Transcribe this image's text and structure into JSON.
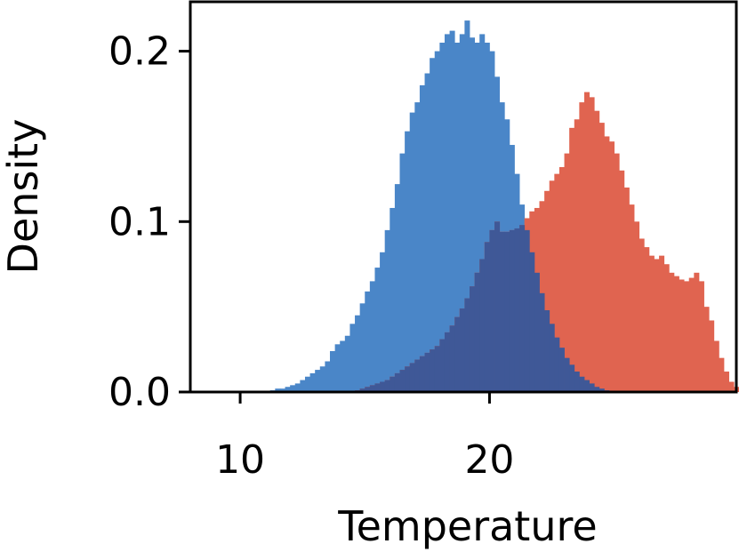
{
  "chart_data": {
    "type": "bar",
    "title": "",
    "xlabel": "Temperature",
    "ylabel": "Density",
    "xlim": [
      8,
      29.9
    ],
    "ylim": [
      0,
      0.229
    ],
    "xticks": [
      10,
      20
    ],
    "xtick_labels": [
      "10",
      "20"
    ],
    "yticks": [
      0.0,
      0.1,
      0.2
    ],
    "ytick_labels": [
      "0.0",
      "0.1",
      "0.2"
    ],
    "bin_width": 0.2,
    "grid": false,
    "legend": "none",
    "series": [
      {
        "color": "#4a86c8",
        "bins": [
          [
            11.0,
            0.0005
          ],
          [
            11.2,
            0.001
          ],
          [
            11.4,
            0.002
          ],
          [
            11.6,
            0.002
          ],
          [
            11.8,
            0.003
          ],
          [
            12.0,
            0.004
          ],
          [
            12.2,
            0.005
          ],
          [
            12.4,
            0.007
          ],
          [
            12.6,
            0.009
          ],
          [
            12.8,
            0.011
          ],
          [
            13.0,
            0.013
          ],
          [
            13.2,
            0.015
          ],
          [
            13.4,
            0.018
          ],
          [
            13.6,
            0.024
          ],
          [
            13.8,
            0.028
          ],
          [
            14.0,
            0.03
          ],
          [
            14.2,
            0.033
          ],
          [
            14.4,
            0.04
          ],
          [
            14.6,
            0.045
          ],
          [
            14.8,
            0.052
          ],
          [
            15.0,
            0.059
          ],
          [
            15.2,
            0.065
          ],
          [
            15.4,
            0.073
          ],
          [
            15.6,
            0.082
          ],
          [
            15.8,
            0.095
          ],
          [
            16.0,
            0.108
          ],
          [
            16.2,
            0.122
          ],
          [
            16.4,
            0.14
          ],
          [
            16.6,
            0.153
          ],
          [
            16.8,
            0.164
          ],
          [
            17.0,
            0.17
          ],
          [
            17.2,
            0.18
          ],
          [
            17.4,
            0.187
          ],
          [
            17.6,
            0.196
          ],
          [
            17.8,
            0.2
          ],
          [
            18.0,
            0.205
          ],
          [
            18.2,
            0.21
          ],
          [
            18.4,
            0.212
          ],
          [
            18.6,
            0.205
          ],
          [
            18.8,
            0.21
          ],
          [
            19.0,
            0.218
          ],
          [
            19.2,
            0.208
          ],
          [
            19.4,
            0.205
          ],
          [
            19.6,
            0.21
          ],
          [
            19.8,
            0.205
          ],
          [
            20.0,
            0.2
          ],
          [
            20.2,
            0.185
          ],
          [
            20.4,
            0.17
          ],
          [
            20.6,
            0.16
          ],
          [
            20.8,
            0.145
          ],
          [
            21.0,
            0.128
          ],
          [
            21.2,
            0.11
          ],
          [
            21.4,
            0.095
          ],
          [
            21.6,
            0.082
          ],
          [
            21.8,
            0.07
          ],
          [
            22.0,
            0.058
          ],
          [
            22.2,
            0.048
          ],
          [
            22.4,
            0.04
          ],
          [
            22.6,
            0.032
          ],
          [
            22.8,
            0.026
          ],
          [
            23.0,
            0.02
          ],
          [
            23.2,
            0.016
          ],
          [
            23.4,
            0.012
          ],
          [
            23.6,
            0.009
          ],
          [
            23.8,
            0.007
          ],
          [
            24.0,
            0.005
          ],
          [
            24.2,
            0.003
          ],
          [
            24.4,
            0.002
          ],
          [
            24.6,
            0.001
          ]
        ]
      },
      {
        "color": "#e06450",
        "bins": [
          [
            14.6,
            0.001
          ],
          [
            14.8,
            0.002
          ],
          [
            15.0,
            0.003
          ],
          [
            15.2,
            0.004
          ],
          [
            15.4,
            0.005
          ],
          [
            15.6,
            0.006
          ],
          [
            15.8,
            0.007
          ],
          [
            16.0,
            0.009
          ],
          [
            16.2,
            0.011
          ],
          [
            16.4,
            0.013
          ],
          [
            16.6,
            0.015
          ],
          [
            16.8,
            0.017
          ],
          [
            17.0,
            0.019
          ],
          [
            17.2,
            0.021
          ],
          [
            17.4,
            0.023
          ],
          [
            17.6,
            0.025
          ],
          [
            17.8,
            0.027
          ],
          [
            18.0,
            0.031
          ],
          [
            18.2,
            0.035
          ],
          [
            18.4,
            0.039
          ],
          [
            18.6,
            0.044
          ],
          [
            18.8,
            0.049
          ],
          [
            19.0,
            0.055
          ],
          [
            19.2,
            0.062
          ],
          [
            19.4,
            0.07
          ],
          [
            19.6,
            0.078
          ],
          [
            19.8,
            0.088
          ],
          [
            20.0,
            0.095
          ],
          [
            20.2,
            0.1
          ],
          [
            20.4,
            0.094
          ],
          [
            20.6,
            0.094
          ],
          [
            20.8,
            0.095
          ],
          [
            21.0,
            0.096
          ],
          [
            21.2,
            0.098
          ],
          [
            21.4,
            0.102
          ],
          [
            21.6,
            0.106
          ],
          [
            21.8,
            0.108
          ],
          [
            22.0,
            0.112
          ],
          [
            22.2,
            0.118
          ],
          [
            22.4,
            0.124
          ],
          [
            22.6,
            0.128
          ],
          [
            22.8,
            0.132
          ],
          [
            23.0,
            0.14
          ],
          [
            23.2,
            0.155
          ],
          [
            23.4,
            0.16
          ],
          [
            23.6,
            0.17
          ],
          [
            23.8,
            0.176
          ],
          [
            24.0,
            0.173
          ],
          [
            24.2,
            0.165
          ],
          [
            24.4,
            0.158
          ],
          [
            24.6,
            0.15
          ],
          [
            24.8,
            0.147
          ],
          [
            25.0,
            0.14
          ],
          [
            25.2,
            0.13
          ],
          [
            25.4,
            0.12
          ],
          [
            25.6,
            0.11
          ],
          [
            25.8,
            0.1
          ],
          [
            26.0,
            0.09
          ],
          [
            26.2,
            0.085
          ],
          [
            26.4,
            0.08
          ],
          [
            26.6,
            0.078
          ],
          [
            26.8,
            0.08
          ],
          [
            27.0,
            0.075
          ],
          [
            27.2,
            0.07
          ],
          [
            27.4,
            0.068
          ],
          [
            27.6,
            0.066
          ],
          [
            27.8,
            0.065
          ],
          [
            28.0,
            0.067
          ],
          [
            28.2,
            0.07
          ],
          [
            28.4,
            0.065
          ],
          [
            28.6,
            0.05
          ],
          [
            28.8,
            0.042
          ],
          [
            29.0,
            0.03
          ],
          [
            29.2,
            0.02
          ],
          [
            29.4,
            0.012
          ],
          [
            29.6,
            0.006
          ],
          [
            29.8,
            0.003
          ],
          [
            30.0,
            0.001
          ]
        ]
      }
    ]
  }
}
